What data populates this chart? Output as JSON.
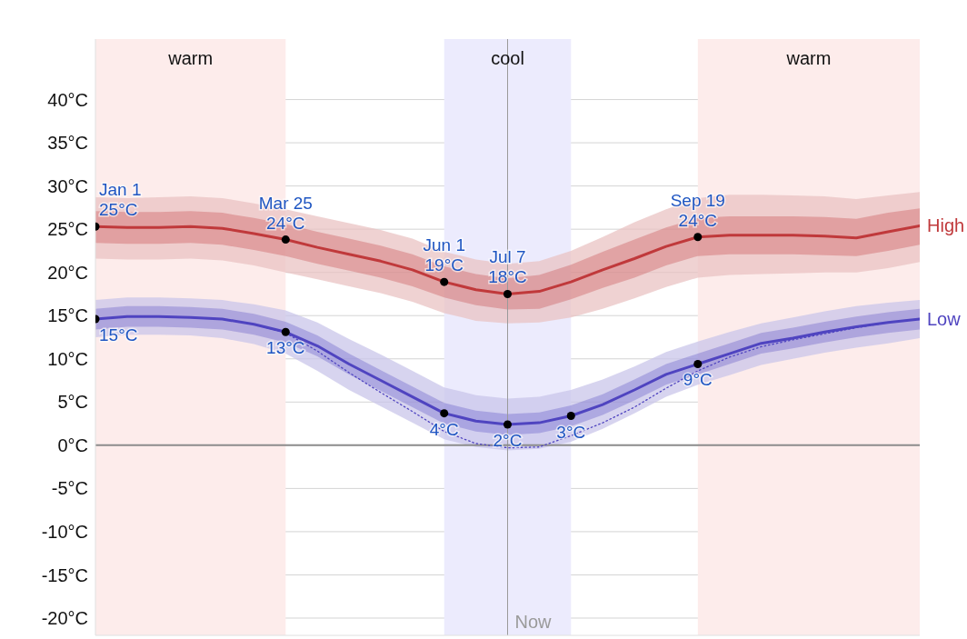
{
  "chart_data": {
    "type": "line",
    "categories": [
      null,
      null,
      null,
      null,
      null,
      null,
      null,
      null,
      null,
      null,
      null,
      null,
      null,
      null,
      null,
      null,
      null,
      null,
      null,
      null,
      null,
      null,
      null,
      null,
      null,
      null,
      null
    ],
    "series": [
      {
        "type": "area",
        "color": "#e9c3c3",
        "values": [
          null,
          null,
          null,
          null,
          null,
          null,
          null,
          null,
          null,
          null,
          null,
          null,
          null,
          null,
          null,
          null,
          null,
          null,
          null,
          null,
          null,
          null,
          null,
          null,
          null,
          null,
          null
        ],
        "lower": [
          21.6,
          21.5,
          21.5,
          21.6,
          21.4,
          20.8,
          20.0,
          19.2,
          18.4,
          17.6,
          16.6,
          15.3,
          14.4,
          14.1,
          14.2,
          14.8,
          15.8,
          17.0,
          18.3,
          19.4,
          19.7,
          19.8,
          19.9,
          20.0,
          20.0,
          20.5,
          21.2
        ],
        "upper": [
          28.7,
          28.6,
          28.7,
          28.8,
          28.6,
          28.0,
          27.3,
          26.5,
          25.7,
          24.9,
          23.9,
          22.4,
          21.5,
          21.0,
          21.3,
          22.5,
          24.1,
          25.8,
          27.3,
          28.6,
          29.0,
          29.0,
          28.9,
          28.8,
          28.5,
          28.9,
          29.3
        ]
      },
      {
        "name": "High",
        "color": "#c0393b",
        "values": [
          25.3,
          25.2,
          25.2,
          25.3,
          25.1,
          24.5,
          23.8,
          22.9,
          22.1,
          21.3,
          20.3,
          18.9,
          18.0,
          17.5,
          17.8,
          18.9,
          20.3,
          21.6,
          23.0,
          24.1,
          24.3,
          24.3,
          24.3,
          24.2,
          24.0,
          24.7,
          25.4
        ],
        "lower": [
          23.4,
          23.3,
          23.3,
          23.4,
          23.2,
          22.6,
          21.9,
          21.0,
          20.2,
          19.4,
          18.4,
          17.1,
          16.2,
          15.7,
          15.8,
          16.9,
          18.2,
          19.4,
          20.8,
          21.9,
          22.1,
          22.1,
          22.1,
          22.0,
          21.9,
          22.5,
          23.2
        ],
        "upper": [
          27.1,
          27.0,
          27.0,
          27.1,
          26.9,
          26.3,
          25.6,
          24.7,
          23.9,
          23.1,
          22.1,
          20.7,
          19.8,
          19.3,
          19.7,
          20.9,
          22.4,
          23.8,
          25.2,
          26.3,
          26.5,
          26.5,
          26.5,
          26.4,
          26.2,
          26.9,
          27.4
        ]
      },
      {
        "type": "area",
        "color": "#c9c6ea",
        "values": [
          null,
          null,
          null,
          null,
          null,
          null,
          null,
          null,
          null,
          null,
          null,
          null,
          null,
          null,
          null,
          null,
          null,
          null,
          null,
          null,
          null,
          null,
          null,
          null,
          null,
          null,
          null
        ],
        "lower": [
          12.5,
          12.8,
          12.8,
          12.7,
          12.4,
          11.7,
          10.6,
          8.6,
          6.4,
          4.5,
          2.6,
          0.7,
          -0.2,
          -0.6,
          -0.4,
          0.4,
          1.9,
          3.7,
          5.6,
          7.0,
          8.1,
          9.3,
          10.0,
          10.7,
          11.3,
          11.8,
          12.4
        ],
        "upper": [
          16.8,
          17.1,
          17.1,
          17.0,
          16.8,
          16.3,
          15.6,
          14.2,
          12.3,
          10.5,
          8.6,
          6.7,
          5.8,
          5.4,
          5.6,
          6.4,
          7.6,
          9.1,
          10.8,
          12.0,
          13.1,
          14.1,
          14.8,
          15.5,
          16.1,
          16.5,
          16.8
        ]
      },
      {
        "name": "Low",
        "color": "#4f44c0",
        "values": [
          14.6,
          14.9,
          14.9,
          14.8,
          14.6,
          14.0,
          13.1,
          11.5,
          9.4,
          7.5,
          5.6,
          3.7,
          2.8,
          2.4,
          2.6,
          3.4,
          4.7,
          6.4,
          8.2,
          9.4,
          10.6,
          11.8,
          12.4,
          13.1,
          13.7,
          14.2,
          14.6
        ],
        "lower": [
          13.4,
          13.7,
          13.7,
          13.6,
          13.4,
          12.8,
          11.9,
          10.3,
          8.2,
          6.3,
          4.4,
          2.5,
          1.6,
          1.2,
          1.4,
          2.2,
          3.5,
          5.2,
          7.0,
          8.2,
          9.4,
          10.6,
          11.2,
          11.9,
          12.5,
          13.0,
          13.4
        ],
        "upper": [
          15.8,
          16.1,
          16.1,
          16.0,
          15.8,
          15.2,
          14.3,
          12.7,
          10.6,
          8.7,
          6.8,
          4.9,
          4.0,
          3.6,
          3.8,
          4.6,
          5.9,
          7.6,
          9.4,
          10.6,
          11.8,
          13.0,
          13.6,
          14.3,
          14.9,
          15.4,
          15.8
        ]
      },
      {
        "color": "#4f44c0",
        "line_style": "dotted",
        "values": [
          14.6,
          14.9,
          14.9,
          14.8,
          14.6,
          14.0,
          13.0,
          10.9,
          8.4,
          6.1,
          3.9,
          1.6,
          0.2,
          -0.3,
          -0.2,
          1.1,
          2.6,
          4.4,
          6.6,
          8.6,
          10.2,
          11.4,
          12.2,
          12.9,
          13.6,
          14.2,
          14.6
        ]
      },
      {
        "type": "scatter",
        "color": "#000000",
        "marker": "circle",
        "values": [
          25.3,
          null,
          null,
          null,
          null,
          null,
          23.8,
          null,
          null,
          null,
          null,
          18.9,
          null,
          17.5,
          null,
          null,
          null,
          null,
          null,
          24.1,
          null,
          null,
          null,
          null,
          null,
          null,
          null
        ],
        "value_labels": [
          "Jan 1\n25°C",
          null,
          null,
          null,
          null,
          null,
          "Mar 25\n24°C",
          null,
          null,
          null,
          null,
          "Jun 1\n19°C",
          null,
          "Jul 7\n18°C",
          null,
          null,
          null,
          null,
          null,
          "Sep 19\n24°C",
          null,
          null,
          null,
          null,
          null,
          null,
          null
        ]
      },
      {
        "type": "scatter",
        "color": "#000000",
        "marker": "circle",
        "values": [
          14.6,
          null,
          null,
          null,
          null,
          null,
          13.1,
          null,
          null,
          null,
          null,
          3.7,
          null,
          2.4,
          null,
          3.4,
          null,
          null,
          null,
          9.4,
          null,
          null,
          null,
          null,
          null,
          null,
          null
        ],
        "value_labels": [
          "15°C",
          null,
          null,
          null,
          null,
          null,
          "13°C",
          null,
          null,
          null,
          null,
          "4°C",
          null,
          "2°C",
          null,
          "3°C",
          null,
          null,
          null,
          "9°C",
          null,
          null,
          null,
          null,
          null,
          null,
          null
        ]
      }
    ],
    "ylim": [
      -22,
      47
    ],
    "yticks": [
      {
        "value": -20,
        "label": "-20°C"
      },
      {
        "value": -15,
        "label": "-15°C"
      },
      {
        "value": -10,
        "label": "-10°C"
      },
      {
        "value": -5,
        "label": "-5°C"
      },
      {
        "value": 0,
        "label": "0°C"
      },
      {
        "value": 5,
        "label": "5°C"
      },
      {
        "value": 10,
        "label": "10°C"
      },
      {
        "value": 15,
        "label": "15°C"
      },
      {
        "value": 20,
        "label": "20°C"
      },
      {
        "value": 25,
        "label": "25°C"
      },
      {
        "value": 30,
        "label": "30°C"
      },
      {
        "value": 35,
        "label": "35°C"
      },
      {
        "value": 40,
        "label": "40°C"
      }
    ],
    "tick_labels": "y",
    "grid": "y",
    "marker": "none",
    "ref_lines": [
      {
        "axis": "y",
        "value": 0,
        "color": "#8c8c8c"
      }
    ],
    "annotations": [
      "warm",
      "cool",
      "warm",
      "Now"
    ]
  }
}
